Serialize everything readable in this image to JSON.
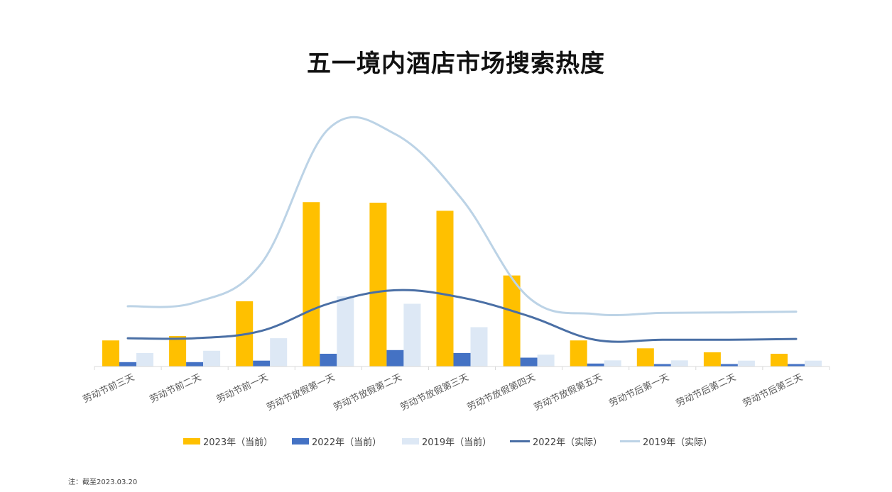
{
  "title": "五一境内酒店市场搜索热度",
  "note": "注：截至2023.03.20",
  "chart_data": {
    "type": "bar",
    "title": "五一境内酒店市场搜索热度",
    "xlabel": "",
    "ylabel": "",
    "ylim": [
      0,
      100
    ],
    "grid": false,
    "legend": "bottom",
    "categories": [
      "劳动节前三天",
      "劳动节前二天",
      "劳动节前一天",
      "劳动节放假第一天",
      "劳动节放假第二天",
      "劳动节放假第三天",
      "劳动节放假第四天",
      "劳动节放假第五天",
      "劳动节后第一天",
      "劳动节后第二天",
      "劳动节后第三天"
    ],
    "series": [
      {
        "name": "2023年（当前）",
        "kind": "bar",
        "color": "#FFC000",
        "values": [
          10.6,
          12.4,
          26.5,
          66.8,
          66.6,
          63.3,
          37.0,
          10.6,
          7.4,
          5.8,
          5.2
        ]
      },
      {
        "name": "2022年（当前）",
        "kind": "bar",
        "color": "#4472C4",
        "values": [
          1.8,
          1.8,
          2.4,
          5.2,
          6.7,
          5.5,
          3.6,
          1.2,
          1.0,
          1.0,
          1.0
        ]
      },
      {
        "name": "2019年（当前）",
        "kind": "bar",
        "color": "#DDE8F5",
        "values": [
          5.5,
          6.4,
          11.5,
          28.5,
          25.5,
          16.0,
          4.8,
          2.5,
          2.5,
          2.4,
          2.4
        ]
      },
      {
        "name": "2022年（实际）",
        "kind": "line",
        "color": "#4A6FA5",
        "values": [
          11.5,
          11.5,
          14.5,
          25.5,
          31.0,
          28.0,
          20.5,
          10.8,
          10.9,
          10.9,
          11.2
        ]
      },
      {
        "name": "2019年（实际）",
        "kind": "line",
        "color": "#BCD3E6",
        "values": [
          24.5,
          26.0,
          42.0,
          96.5,
          94.5,
          68.0,
          28.0,
          21.3,
          21.8,
          22.0,
          22.3
        ]
      }
    ]
  }
}
